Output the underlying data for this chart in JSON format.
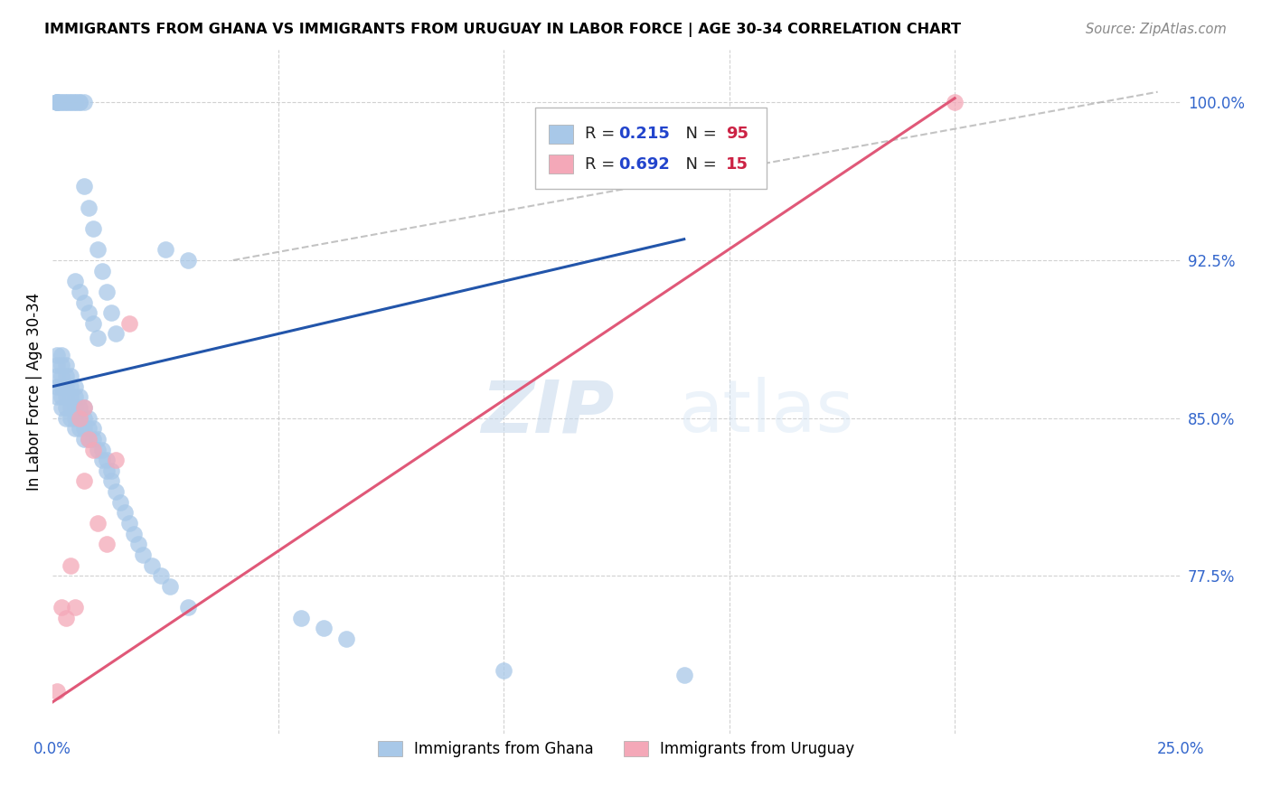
{
  "title": "IMMIGRANTS FROM GHANA VS IMMIGRANTS FROM URUGUAY IN LABOR FORCE | AGE 30-34 CORRELATION CHART",
  "source": "Source: ZipAtlas.com",
  "ylabel": "In Labor Force | Age 30-34",
  "xlim": [
    0.0,
    0.25
  ],
  "ylim": [
    0.7,
    1.025
  ],
  "ghana_R": 0.215,
  "ghana_N": 95,
  "uruguay_R": 0.692,
  "uruguay_N": 15,
  "ghana_color": "#a8c8e8",
  "uruguay_color": "#f4a8b8",
  "ghana_line_color": "#2255aa",
  "uruguay_line_color": "#e05878",
  "diag_color": "#aaaaaa",
  "grid_color": "#cccccc",
  "tick_color": "#3366cc",
  "ghana_line": [
    0.0,
    0.865,
    0.14,
    0.935
  ],
  "uruguay_line": [
    0.0,
    0.715,
    0.2,
    1.002
  ],
  "diag_line": [
    0.04,
    0.925,
    0.245,
    1.005
  ],
  "ytick_positions": [
    0.775,
    0.85,
    0.925,
    1.0
  ],
  "ytick_labels": [
    "77.5%",
    "85.0%",
    "92.5%",
    "100.0%"
  ],
  "xtick_positions": [
    0.0,
    0.05,
    0.1,
    0.15,
    0.2,
    0.25
  ],
  "xtick_labels": [
    "0.0%",
    "",
    "",
    "",
    "",
    "25.0%"
  ],
  "ghana_x": [
    0.001,
    0.001,
    0.001,
    0.001,
    0.001,
    0.002,
    0.002,
    0.002,
    0.002,
    0.002,
    0.002,
    0.003,
    0.003,
    0.003,
    0.003,
    0.003,
    0.003,
    0.004,
    0.004,
    0.004,
    0.004,
    0.004,
    0.005,
    0.005,
    0.005,
    0.005,
    0.005,
    0.006,
    0.006,
    0.006,
    0.006,
    0.007,
    0.007,
    0.007,
    0.007,
    0.008,
    0.008,
    0.008,
    0.009,
    0.009,
    0.01,
    0.01,
    0.011,
    0.011,
    0.012,
    0.012,
    0.013,
    0.013,
    0.014,
    0.015,
    0.016,
    0.017,
    0.018,
    0.019,
    0.02,
    0.022,
    0.024,
    0.026,
    0.03,
    0.001,
    0.001,
    0.001,
    0.001,
    0.002,
    0.002,
    0.003,
    0.003,
    0.004,
    0.004,
    0.005,
    0.005,
    0.006,
    0.006,
    0.007,
    0.007,
    0.008,
    0.009,
    0.01,
    0.011,
    0.012,
    0.013,
    0.014,
    0.055,
    0.06,
    0.065,
    0.1,
    0.14,
    0.005,
    0.006,
    0.007,
    0.008,
    0.009,
    0.01,
    0.025,
    0.03
  ],
  "ghana_y": [
    0.88,
    0.875,
    0.87,
    0.865,
    0.86,
    0.88,
    0.875,
    0.87,
    0.865,
    0.86,
    0.855,
    0.875,
    0.87,
    0.865,
    0.86,
    0.855,
    0.85,
    0.87,
    0.865,
    0.86,
    0.855,
    0.85,
    0.865,
    0.86,
    0.855,
    0.85,
    0.845,
    0.86,
    0.855,
    0.85,
    0.845,
    0.855,
    0.85,
    0.845,
    0.84,
    0.85,
    0.845,
    0.84,
    0.845,
    0.84,
    0.84,
    0.835,
    0.835,
    0.83,
    0.83,
    0.825,
    0.825,
    0.82,
    0.815,
    0.81,
    0.805,
    0.8,
    0.795,
    0.79,
    0.785,
    0.78,
    0.775,
    0.77,
    0.76,
    1.0,
    1.0,
    1.0,
    1.0,
    1.0,
    1.0,
    1.0,
    1.0,
    1.0,
    1.0,
    1.0,
    1.0,
    1.0,
    1.0,
    1.0,
    0.96,
    0.95,
    0.94,
    0.93,
    0.92,
    0.91,
    0.9,
    0.89,
    0.755,
    0.75,
    0.745,
    0.73,
    0.728,
    0.915,
    0.91,
    0.905,
    0.9,
    0.895,
    0.888,
    0.93,
    0.925
  ],
  "uruguay_x": [
    0.001,
    0.002,
    0.003,
    0.004,
    0.005,
    0.006,
    0.007,
    0.007,
    0.008,
    0.009,
    0.01,
    0.012,
    0.014,
    0.017,
    0.2
  ],
  "uruguay_y": [
    0.72,
    0.76,
    0.755,
    0.78,
    0.76,
    0.85,
    0.855,
    0.82,
    0.84,
    0.835,
    0.8,
    0.79,
    0.83,
    0.895,
    1.0
  ]
}
